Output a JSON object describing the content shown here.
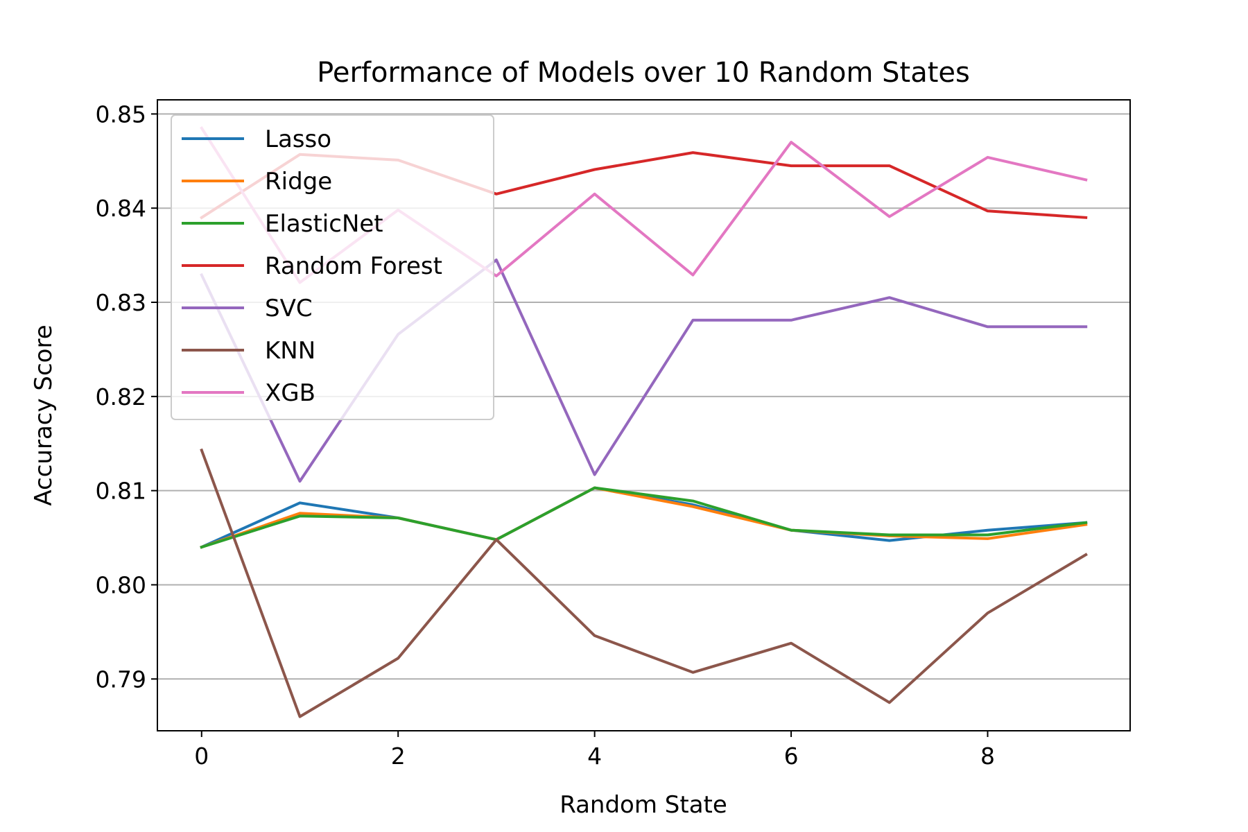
{
  "chart_data": {
    "type": "line",
    "title": "Performance of Models over 10 Random States",
    "xlabel": "Random State",
    "ylabel": "Accuracy Score",
    "x": [
      0,
      1,
      2,
      3,
      4,
      5,
      6,
      7,
      8,
      9
    ],
    "xlim": [
      -0.45,
      9.45
    ],
    "ylim": [
      0.7845,
      0.8515
    ],
    "xticks": [
      "0",
      "2",
      "4",
      "6",
      "8"
    ],
    "yticks": [
      "0.79",
      "0.80",
      "0.81",
      "0.82",
      "0.83",
      "0.84",
      "0.85"
    ],
    "grid": "horizontal",
    "legend_position": "upper left",
    "series": [
      {
        "name": "Lasso",
        "color": "#1f77b4",
        "values": [
          0.804,
          0.8087,
          0.8071,
          0.8048,
          0.8103,
          0.8085,
          0.8058,
          0.8047,
          0.8058,
          0.8066
        ]
      },
      {
        "name": "Ridge",
        "color": "#ff7f0e",
        "values": [
          0.804,
          0.8076,
          0.8071,
          0.8048,
          0.8103,
          0.8083,
          0.8058,
          0.8052,
          0.8049,
          0.8064
        ]
      },
      {
        "name": "ElasticNet",
        "color": "#2ca02c",
        "values": [
          0.804,
          0.8073,
          0.8071,
          0.8048,
          0.8103,
          0.8089,
          0.8058,
          0.8053,
          0.8053,
          0.8066
        ]
      },
      {
        "name": "Random Forest",
        "color": "#d62728",
        "values": [
          0.839,
          0.8457,
          0.8451,
          0.8415,
          0.8441,
          0.8459,
          0.8445,
          0.8445,
          0.8397,
          0.839
        ]
      },
      {
        "name": "SVC",
        "color": "#9467bd",
        "values": [
          0.8329,
          0.811,
          0.8266,
          0.8345,
          0.8117,
          0.8281,
          0.8281,
          0.8305,
          0.8274,
          0.8274
        ]
      },
      {
        "name": "KNN",
        "color": "#8c564b",
        "values": [
          0.8143,
          0.786,
          0.7922,
          0.8048,
          0.7946,
          0.7907,
          0.7938,
          0.7875,
          0.797,
          0.8032
        ]
      },
      {
        "name": "XGB",
        "color": "#e377c2",
        "values": [
          0.8485,
          0.8321,
          0.8398,
          0.8328,
          0.8415,
          0.8329,
          0.847,
          0.8391,
          0.8454,
          0.843
        ]
      }
    ]
  }
}
